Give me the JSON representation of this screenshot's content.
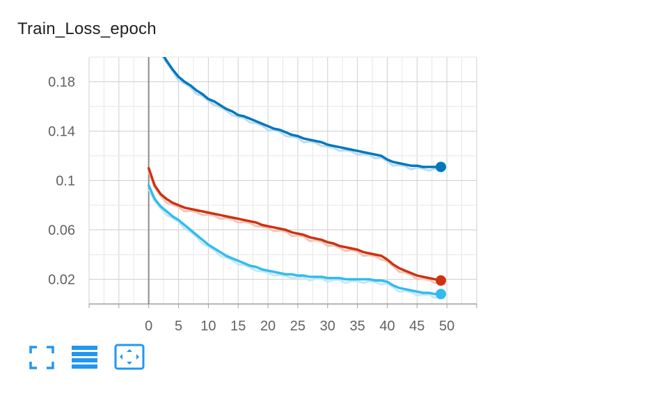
{
  "chart_data": {
    "type": "line",
    "title": "Train_Loss_epoch",
    "xlabel": "",
    "ylabel": "",
    "xlim": [
      -10,
      55
    ],
    "ylim": [
      0,
      0.2
    ],
    "xticks": [
      0,
      5,
      10,
      15,
      20,
      25,
      30,
      35,
      40,
      45,
      50
    ],
    "xtick_labels": [
      "0",
      "5",
      "10",
      "15",
      "20",
      "25",
      "30",
      "35",
      "40",
      "45",
      "50"
    ],
    "yticks": [
      0.02,
      0.06,
      0.1,
      0.14,
      0.18
    ],
    "ytick_labels": [
      "0.02",
      "0.06",
      "0.1",
      "0.14",
      "0.18"
    ],
    "grid": true,
    "legend": "none",
    "series": [
      {
        "color": "#0077bb",
        "raw_color": "#bcdcf0",
        "x": [
          2,
          3,
          4,
          5,
          6,
          7,
          8,
          9,
          10,
          11,
          12,
          13,
          14,
          15,
          16,
          17,
          18,
          19,
          20,
          21,
          22,
          23,
          24,
          25,
          26,
          27,
          28,
          29,
          30,
          31,
          32,
          33,
          34,
          35,
          36,
          37,
          38,
          39,
          40,
          41,
          42,
          43,
          44,
          45,
          46,
          47,
          48,
          49
        ],
        "y": [
          0.205,
          0.197,
          0.19,
          0.184,
          0.18,
          0.177,
          0.173,
          0.17,
          0.166,
          0.164,
          0.161,
          0.158,
          0.156,
          0.153,
          0.152,
          0.15,
          0.148,
          0.146,
          0.144,
          0.142,
          0.141,
          0.139,
          0.137,
          0.136,
          0.134,
          0.133,
          0.132,
          0.131,
          0.129,
          0.128,
          0.127,
          0.126,
          0.125,
          0.124,
          0.123,
          0.122,
          0.121,
          0.12,
          0.117,
          0.115,
          0.114,
          0.113,
          0.112,
          0.112,
          0.111,
          0.111,
          0.111,
          0.111
        ]
      },
      {
        "color": "#cc3311",
        "raw_color": "#f4c4b8",
        "x": [
          0,
          1,
          2,
          3,
          4,
          5,
          6,
          7,
          8,
          9,
          10,
          11,
          12,
          13,
          14,
          15,
          16,
          17,
          18,
          19,
          20,
          21,
          22,
          23,
          24,
          25,
          26,
          27,
          28,
          29,
          30,
          31,
          32,
          33,
          34,
          35,
          36,
          37,
          38,
          39,
          40,
          41,
          42,
          43,
          44,
          45,
          46,
          47,
          48,
          49
        ],
        "y": [
          0.11,
          0.096,
          0.089,
          0.085,
          0.082,
          0.08,
          0.078,
          0.077,
          0.076,
          0.075,
          0.074,
          0.073,
          0.072,
          0.071,
          0.07,
          0.069,
          0.068,
          0.067,
          0.066,
          0.064,
          0.063,
          0.062,
          0.061,
          0.06,
          0.058,
          0.057,
          0.056,
          0.054,
          0.053,
          0.052,
          0.05,
          0.049,
          0.047,
          0.046,
          0.045,
          0.044,
          0.042,
          0.041,
          0.04,
          0.039,
          0.036,
          0.032,
          0.029,
          0.027,
          0.025,
          0.023,
          0.022,
          0.021,
          0.02,
          0.019
        ]
      },
      {
        "color": "#33bbee",
        "raw_color": "#c2e9f8",
        "x": [
          0,
          1,
          2,
          3,
          4,
          5,
          6,
          7,
          8,
          9,
          10,
          11,
          12,
          13,
          14,
          15,
          16,
          17,
          18,
          19,
          20,
          21,
          22,
          23,
          24,
          25,
          26,
          27,
          28,
          29,
          30,
          31,
          32,
          33,
          34,
          35,
          36,
          37,
          38,
          39,
          40,
          41,
          42,
          43,
          44,
          45,
          46,
          47,
          48,
          49
        ],
        "y": [
          0.096,
          0.085,
          0.079,
          0.075,
          0.071,
          0.068,
          0.064,
          0.06,
          0.056,
          0.052,
          0.048,
          0.045,
          0.042,
          0.039,
          0.037,
          0.035,
          0.033,
          0.031,
          0.03,
          0.028,
          0.027,
          0.026,
          0.025,
          0.024,
          0.024,
          0.023,
          0.023,
          0.022,
          0.022,
          0.022,
          0.021,
          0.021,
          0.021,
          0.02,
          0.02,
          0.02,
          0.02,
          0.02,
          0.019,
          0.019,
          0.018,
          0.015,
          0.013,
          0.012,
          0.011,
          0.01,
          0.009,
          0.009,
          0.008,
          0.008
        ]
      }
    ]
  },
  "toolbar": {
    "accent_color": "#2196f3",
    "buttons": [
      {
        "name": "fullscreen-button",
        "icon": "fullscreen-icon"
      },
      {
        "name": "toggle-y-log-button",
        "icon": "lines-icon"
      },
      {
        "name": "fit-domain-button",
        "icon": "fit-to-data-icon"
      }
    ]
  }
}
